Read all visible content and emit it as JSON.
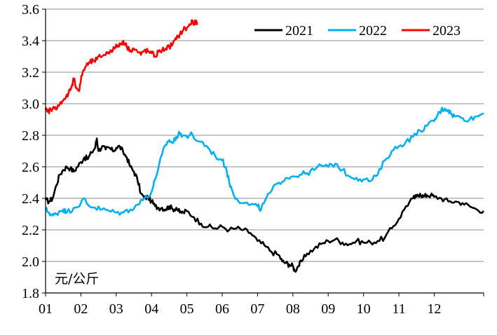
{
  "chart_data": {
    "type": "line",
    "title": "",
    "xlabel": "",
    "ylabel": "",
    "unit_label": "元/公斤",
    "categories": [
      "01",
      "02",
      "03",
      "04",
      "05",
      "06",
      "07",
      "08",
      "09",
      "10",
      "11",
      "12"
    ],
    "x_range": [
      0,
      12.4
    ],
    "ylim": [
      1.8,
      3.6
    ],
    "yticks": [
      "1.8",
      "2.0",
      "2.2",
      "2.4",
      "2.6",
      "2.8",
      "3.0",
      "3.2",
      "3.4",
      "3.6"
    ],
    "grid": true,
    "legend_position": "top-right",
    "series": [
      {
        "name": "2021",
        "color": "#000000",
        "points": [
          [
            0.0,
            2.39
          ],
          [
            0.1,
            2.38
          ],
          [
            0.2,
            2.4
          ],
          [
            0.3,
            2.48
          ],
          [
            0.4,
            2.55
          ],
          [
            0.5,
            2.58
          ],
          [
            0.6,
            2.6
          ],
          [
            0.7,
            2.59
          ],
          [
            0.8,
            2.57
          ],
          [
            0.9,
            2.6
          ],
          [
            1.0,
            2.63
          ],
          [
            1.1,
            2.66
          ],
          [
            1.2,
            2.65
          ],
          [
            1.3,
            2.69
          ],
          [
            1.4,
            2.72
          ],
          [
            1.45,
            2.78
          ],
          [
            1.5,
            2.7
          ],
          [
            1.6,
            2.73
          ],
          [
            1.7,
            2.71
          ],
          [
            1.8,
            2.72
          ],
          [
            1.9,
            2.7
          ],
          [
            2.0,
            2.72
          ],
          [
            2.1,
            2.73
          ],
          [
            2.2,
            2.69
          ],
          [
            2.3,
            2.66
          ],
          [
            2.4,
            2.6
          ],
          [
            2.5,
            2.57
          ],
          [
            2.6,
            2.52
          ],
          [
            2.7,
            2.43
          ],
          [
            2.8,
            2.4
          ],
          [
            2.9,
            2.41
          ],
          [
            3.0,
            2.38
          ],
          [
            3.1,
            2.35
          ],
          [
            3.2,
            2.34
          ],
          [
            3.3,
            2.34
          ],
          [
            3.4,
            2.33
          ],
          [
            3.5,
            2.35
          ],
          [
            3.6,
            2.33
          ],
          [
            3.7,
            2.34
          ],
          [
            3.8,
            2.31
          ],
          [
            3.9,
            2.31
          ],
          [
            4.0,
            2.32
          ],
          [
            4.2,
            2.28
          ],
          [
            4.4,
            2.24
          ],
          [
            4.6,
            2.22
          ],
          [
            4.8,
            2.21
          ],
          [
            5.0,
            2.22
          ],
          [
            5.2,
            2.2
          ],
          [
            5.4,
            2.21
          ],
          [
            5.6,
            2.2
          ],
          [
            5.8,
            2.18
          ],
          [
            6.0,
            2.13
          ],
          [
            6.2,
            2.1
          ],
          [
            6.4,
            2.06
          ],
          [
            6.6,
            2.04
          ],
          [
            6.7,
            2.0
          ],
          [
            6.8,
            1.99
          ],
          [
            6.9,
            1.98
          ],
          [
            7.0,
            1.97
          ],
          [
            7.05,
            1.94
          ],
          [
            7.15,
            1.97
          ],
          [
            7.25,
            2.0
          ],
          [
            7.4,
            2.05
          ],
          [
            7.6,
            2.08
          ],
          [
            7.8,
            2.11
          ],
          [
            8.0,
            2.13
          ],
          [
            8.2,
            2.14
          ],
          [
            8.4,
            2.12
          ],
          [
            8.6,
            2.11
          ],
          [
            8.8,
            2.13
          ],
          [
            9.0,
            2.12
          ],
          [
            9.2,
            2.12
          ],
          [
            9.4,
            2.13
          ],
          [
            9.6,
            2.15
          ],
          [
            9.8,
            2.21
          ],
          [
            10.0,
            2.27
          ],
          [
            10.2,
            2.35
          ],
          [
            10.4,
            2.4
          ],
          [
            10.5,
            2.41
          ],
          [
            10.6,
            2.43
          ],
          [
            10.7,
            2.41
          ],
          [
            10.8,
            2.42
          ],
          [
            10.9,
            2.42
          ],
          [
            11.0,
            2.41
          ],
          [
            11.2,
            2.4
          ],
          [
            11.4,
            2.38
          ],
          [
            11.6,
            2.38
          ],
          [
            11.8,
            2.37
          ],
          [
            12.0,
            2.35
          ],
          [
            12.2,
            2.33
          ],
          [
            12.4,
            2.32
          ]
        ]
      },
      {
        "name": "2022",
        "color": "#00b0f0",
        "points": [
          [
            0.0,
            2.33
          ],
          [
            0.1,
            2.31
          ],
          [
            0.2,
            2.29
          ],
          [
            0.3,
            2.3
          ],
          [
            0.4,
            2.32
          ],
          [
            0.5,
            2.33
          ],
          [
            0.6,
            2.31
          ],
          [
            0.8,
            2.34
          ],
          [
            1.0,
            2.37
          ],
          [
            1.1,
            2.4
          ],
          [
            1.2,
            2.36
          ],
          [
            1.4,
            2.34
          ],
          [
            1.6,
            2.33
          ],
          [
            1.8,
            2.32
          ],
          [
            2.0,
            2.31
          ],
          [
            2.2,
            2.31
          ],
          [
            2.4,
            2.33
          ],
          [
            2.6,
            2.36
          ],
          [
            2.8,
            2.4
          ],
          [
            3.0,
            2.44
          ],
          [
            3.1,
            2.52
          ],
          [
            3.2,
            2.6
          ],
          [
            3.3,
            2.68
          ],
          [
            3.4,
            2.74
          ],
          [
            3.5,
            2.77
          ],
          [
            3.6,
            2.75
          ],
          [
            3.7,
            2.79
          ],
          [
            3.8,
            2.81
          ],
          [
            3.9,
            2.8
          ],
          [
            4.0,
            2.79
          ],
          [
            4.1,
            2.81
          ],
          [
            4.2,
            2.78
          ],
          [
            4.4,
            2.76
          ],
          [
            4.6,
            2.72
          ],
          [
            4.8,
            2.67
          ],
          [
            5.0,
            2.64
          ],
          [
            5.1,
            2.6
          ],
          [
            5.2,
            2.5
          ],
          [
            5.3,
            2.44
          ],
          [
            5.4,
            2.4
          ],
          [
            5.6,
            2.37
          ],
          [
            5.8,
            2.36
          ],
          [
            6.0,
            2.35
          ],
          [
            6.1,
            2.33
          ],
          [
            6.2,
            2.38
          ],
          [
            6.4,
            2.45
          ],
          [
            6.6,
            2.5
          ],
          [
            6.8,
            2.53
          ],
          [
            7.0,
            2.54
          ],
          [
            7.2,
            2.55
          ],
          [
            7.4,
            2.56
          ],
          [
            7.6,
            2.58
          ],
          [
            7.8,
            2.61
          ],
          [
            8.0,
            2.6
          ],
          [
            8.2,
            2.62
          ],
          [
            8.4,
            2.58
          ],
          [
            8.6,
            2.54
          ],
          [
            8.8,
            2.53
          ],
          [
            9.0,
            2.52
          ],
          [
            9.2,
            2.51
          ],
          [
            9.4,
            2.55
          ],
          [
            9.6,
            2.64
          ],
          [
            9.8,
            2.7
          ],
          [
            10.0,
            2.73
          ],
          [
            10.2,
            2.76
          ],
          [
            10.4,
            2.79
          ],
          [
            10.6,
            2.83
          ],
          [
            10.8,
            2.86
          ],
          [
            11.0,
            2.89
          ],
          [
            11.1,
            2.93
          ],
          [
            11.2,
            2.96
          ],
          [
            11.3,
            2.97
          ],
          [
            11.4,
            2.96
          ],
          [
            11.5,
            2.93
          ],
          [
            11.6,
            2.92
          ],
          [
            11.8,
            2.91
          ],
          [
            12.0,
            2.9
          ],
          [
            12.2,
            2.92
          ],
          [
            12.4,
            2.94
          ]
        ]
      },
      {
        "name": "2023",
        "color": "#ff0000",
        "points": [
          [
            0.0,
            2.96
          ],
          [
            0.05,
            2.95
          ],
          [
            0.15,
            2.96
          ],
          [
            0.25,
            2.97
          ],
          [
            0.35,
            2.99
          ],
          [
            0.45,
            3.0
          ],
          [
            0.55,
            3.03
          ],
          [
            0.65,
            3.07
          ],
          [
            0.75,
            3.12
          ],
          [
            0.8,
            3.16
          ],
          [
            0.88,
            3.1
          ],
          [
            0.95,
            3.08
          ],
          [
            1.0,
            3.15
          ],
          [
            1.05,
            3.2
          ],
          [
            1.15,
            3.24
          ],
          [
            1.25,
            3.26
          ],
          [
            1.35,
            3.27
          ],
          [
            1.45,
            3.28
          ],
          [
            1.55,
            3.3
          ],
          [
            1.65,
            3.31
          ],
          [
            1.75,
            3.32
          ],
          [
            1.85,
            3.34
          ],
          [
            1.95,
            3.35
          ],
          [
            2.05,
            3.37
          ],
          [
            2.15,
            3.38
          ],
          [
            2.2,
            3.4
          ],
          [
            2.3,
            3.36
          ],
          [
            2.4,
            3.34
          ],
          [
            2.5,
            3.35
          ],
          [
            2.6,
            3.33
          ],
          [
            2.7,
            3.31
          ],
          [
            2.8,
            3.34
          ],
          [
            2.9,
            3.33
          ],
          [
            3.0,
            3.32
          ],
          [
            3.1,
            3.3
          ],
          [
            3.2,
            3.33
          ],
          [
            3.3,
            3.34
          ],
          [
            3.4,
            3.35
          ],
          [
            3.5,
            3.36
          ],
          [
            3.6,
            3.38
          ],
          [
            3.7,
            3.41
          ],
          [
            3.8,
            3.44
          ],
          [
            3.9,
            3.47
          ],
          [
            4.0,
            3.48
          ],
          [
            4.1,
            3.5
          ],
          [
            4.15,
            3.53
          ],
          [
            4.2,
            3.5
          ],
          [
            4.25,
            3.52
          ],
          [
            4.3,
            3.5
          ]
        ]
      }
    ]
  }
}
